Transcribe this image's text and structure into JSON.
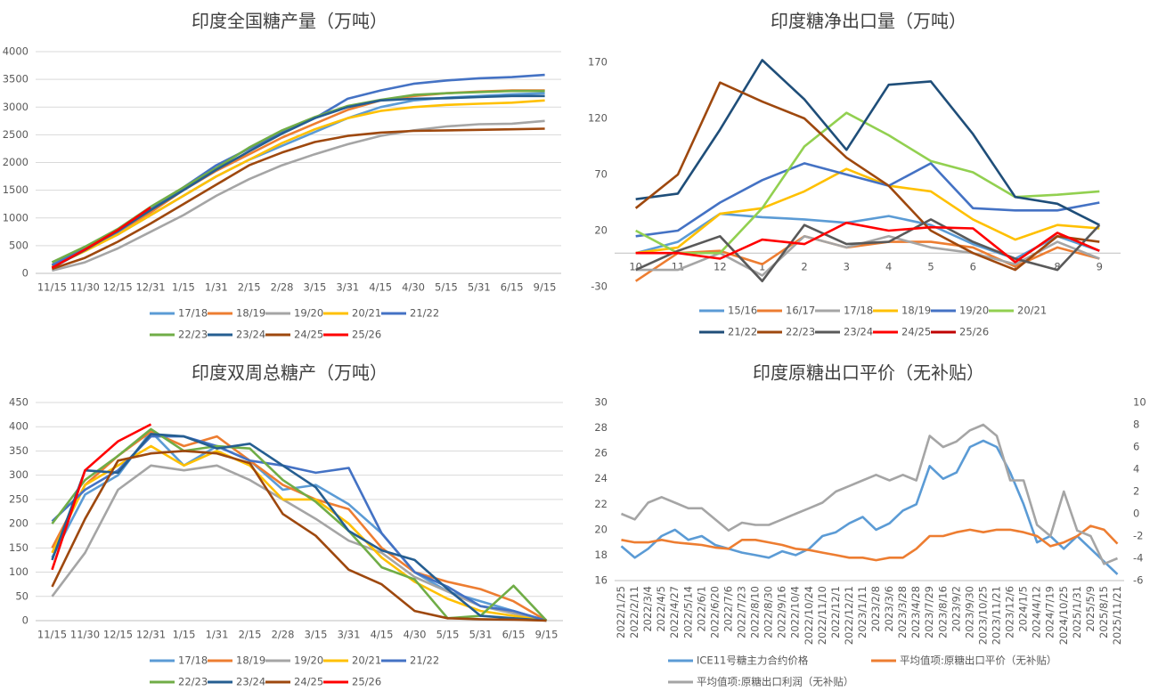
{
  "chart_data": [
    {
      "type": "line",
      "title": "印度全国糖产量（万吨）",
      "categories": [
        "11/15",
        "11/30",
        "12/15",
        "12/31",
        "1/15",
        "1/31",
        "2/15",
        "2/28",
        "3/15",
        "3/31",
        "4/15",
        "4/30",
        "5/15",
        "5/31",
        "6/15",
        "9/15"
      ],
      "ylim": [
        0,
        4000
      ],
      "yticks": [
        0,
        500,
        1000,
        1500,
        2000,
        2500,
        3000,
        3500,
        4000
      ],
      "grid": true,
      "series": [
        {
          "name": "17/18",
          "color": "#5b9bd5",
          "values": [
            150,
            420,
            700,
            1050,
            1400,
            1750,
            2050,
            2300,
            2550,
            2800,
            3000,
            3120,
            3170,
            3200,
            3230,
            3250
          ]
        },
        {
          "name": "18/19",
          "color": "#ed7d31",
          "values": [
            150,
            440,
            750,
            1100,
            1500,
            1850,
            2150,
            2450,
            2700,
            2950,
            3120,
            3200,
            3250,
            3280,
            3300,
            3300
          ]
        },
        {
          "name": "19/20",
          "color": "#a5a5a5",
          "values": [
            50,
            200,
            450,
            750,
            1050,
            1400,
            1700,
            1950,
            2150,
            2330,
            2480,
            2580,
            2650,
            2690,
            2700,
            2750
          ]
        },
        {
          "name": "20/21",
          "color": "#ffc000",
          "values": [
            120,
            400,
            700,
            1050,
            1400,
            1750,
            2050,
            2350,
            2600,
            2800,
            2930,
            3000,
            3040,
            3060,
            3080,
            3120
          ]
        },
        {
          "name": "21/22",
          "color": "#4472c4",
          "values": [
            150,
            450,
            750,
            1150,
            1550,
            1950,
            2250,
            2550,
            2800,
            3150,
            3300,
            3420,
            3480,
            3520,
            3540,
            3580
          ]
        },
        {
          "name": "22/23",
          "color": "#70ad47",
          "values": [
            200,
            480,
            800,
            1200,
            1550,
            1900,
            2270,
            2580,
            2820,
            3020,
            3130,
            3220,
            3250,
            3270,
            3290,
            3290
          ]
        },
        {
          "name": "23/24",
          "color": "#255e91",
          "values": [
            100,
            420,
            770,
            1140,
            1500,
            1870,
            2200,
            2520,
            2800,
            3000,
            3120,
            3150,
            3160,
            3180,
            3200,
            3200
          ]
        },
        {
          "name": "24/25",
          "color": "#9e480e",
          "values": [
            80,
            280,
            570,
            900,
            1250,
            1600,
            1950,
            2180,
            2370,
            2480,
            2540,
            2570,
            2580,
            2590,
            2600,
            2610
          ]
        },
        {
          "name": "25/26",
          "color": "#ff0000",
          "values": [
            100,
            430,
            780,
            1190,
            null,
            null,
            null,
            null,
            null,
            null,
            null,
            null,
            null,
            null,
            null,
            null
          ]
        }
      ]
    },
    {
      "type": "line",
      "title": "印度糖净出口量（万吨）",
      "categories": [
        "10",
        "11",
        "12",
        "1",
        "2",
        "3",
        "4",
        "5",
        "6",
        "7",
        "8",
        "9"
      ],
      "ylim": [
        -30,
        170
      ],
      "yticks": [
        -30,
        20,
        70,
        120,
        170
      ],
      "grid": false,
      "series": [
        {
          "name": "15/16",
          "color": "#5b9bd5",
          "values": [
            0,
            10,
            35,
            32,
            30,
            27,
            33,
            25,
            8,
            -5,
            15,
            2
          ]
        },
        {
          "name": "16/17",
          "color": "#ed7d31",
          "values": [
            -25,
            0,
            2,
            -10,
            15,
            5,
            10,
            10,
            5,
            -12,
            5,
            -5
          ]
        },
        {
          "name": "17/18",
          "color": "#a5a5a5",
          "values": [
            -15,
            -15,
            0,
            -20,
            15,
            5,
            15,
            5,
            0,
            -10,
            10,
            -5
          ]
        },
        {
          "name": "18/19",
          "color": "#ffc000",
          "values": [
            0,
            5,
            35,
            40,
            55,
            75,
            60,
            55,
            30,
            12,
            25,
            22
          ]
        },
        {
          "name": "19/20",
          "color": "#4472c4",
          "values": [
            15,
            20,
            45,
            65,
            80,
            70,
            60,
            80,
            40,
            38,
            38,
            45
          ]
        },
        {
          "name": "20/21",
          "color": "#92d050",
          "values": [
            20,
            0,
            0,
            40,
            95,
            125,
            105,
            82,
            72,
            50,
            52,
            55
          ]
        },
        {
          "name": "21/22",
          "color": "#1f4e79",
          "values": [
            48,
            53,
            110,
            172,
            137,
            92,
            150,
            153,
            106,
            50,
            44,
            25
          ]
        },
        {
          "name": "22/23",
          "color": "#9e480e",
          "values": [
            40,
            70,
            152,
            135,
            120,
            85,
            60,
            20,
            0,
            -15,
            15,
            10
          ]
        },
        {
          "name": "23/24",
          "color": "#595959",
          "values": [
            -15,
            2,
            15,
            -25,
            25,
            8,
            10,
            30,
            10,
            -5,
            -15,
            25
          ]
        },
        {
          "name": "24/25",
          "color": "#ff0000",
          "values": [
            0,
            0,
            -5,
            12,
            8,
            27,
            20,
            23,
            22,
            -8,
            18,
            2
          ]
        },
        {
          "name": "25/26",
          "color": "#c00000",
          "values": [
            null,
            null,
            null,
            null,
            null,
            null,
            null,
            null,
            null,
            null,
            null,
            null
          ]
        }
      ]
    },
    {
      "type": "line",
      "title": "印度双周总糖产（万吨）",
      "categories": [
        "11/15",
        "11/30",
        "12/15",
        "12/31",
        "1/15",
        "1/31",
        "2/15",
        "2/28",
        "3/15",
        "3/31",
        "4/15",
        "4/30",
        "5/15",
        "5/31",
        "6/15",
        "9/15"
      ],
      "ylim": [
        0,
        450
      ],
      "yticks": [
        0,
        50,
        100,
        150,
        200,
        250,
        300,
        350,
        400,
        450
      ],
      "grid": true,
      "series": [
        {
          "name": "17/18",
          "color": "#5b9bd5",
          "values": [
            130,
            260,
            300,
            390,
            320,
            360,
            330,
            270,
            280,
            240,
            180,
            100,
            60,
            40,
            20,
            0
          ]
        },
        {
          "name": "18/19",
          "color": "#ed7d31",
          "values": [
            150,
            280,
            340,
            390,
            360,
            380,
            330,
            280,
            250,
            230,
            150,
            100,
            80,
            65,
            40,
            0
          ]
        },
        {
          "name": "19/20",
          "color": "#a5a5a5",
          "values": [
            50,
            140,
            270,
            320,
            310,
            320,
            290,
            250,
            210,
            165,
            140,
            90,
            60,
            30,
            15,
            0
          ]
        },
        {
          "name": "20/21",
          "color": "#ffc000",
          "values": [
            140,
            280,
            320,
            360,
            320,
            350,
            320,
            250,
            250,
            200,
            130,
            80,
            45,
            20,
            10,
            0
          ]
        },
        {
          "name": "21/22",
          "color": "#4472c4",
          "values": [
            205,
            270,
            310,
            380,
            380,
            360,
            330,
            320,
            305,
            315,
            180,
            100,
            70,
            30,
            20,
            0
          ]
        },
        {
          "name": "22/23",
          "color": "#70ad47",
          "values": [
            200,
            290,
            340,
            395,
            350,
            360,
            355,
            290,
            245,
            185,
            110,
            85,
            5,
            10,
            72,
            0
          ]
        },
        {
          "name": "23/24",
          "color": "#255e91",
          "values": [
            125,
            310,
            305,
            385,
            380,
            355,
            365,
            320,
            275,
            185,
            145,
            125,
            65,
            10,
            5,
            0
          ]
        },
        {
          "name": "24/25",
          "color": "#9e480e",
          "values": [
            70,
            210,
            330,
            345,
            350,
            345,
            325,
            220,
            175,
            105,
            75,
            20,
            5,
            3,
            2,
            0
          ]
        },
        {
          "name": "25/26",
          "color": "#ff0000",
          "values": [
            105,
            310,
            370,
            405,
            null,
            null,
            null,
            null,
            null,
            null,
            null,
            null,
            null,
            null,
            null,
            null
          ]
        }
      ]
    },
    {
      "type": "line",
      "title": "印度原糖出口平价（无补贴）",
      "categories": [
        "2022/1/25",
        "2022/2/11",
        "2022/3/4",
        "2022/4/5",
        "2022/4/27",
        "2022/5/14",
        "2022/6/1",
        "2022/6/20",
        "2022/7/6",
        "2022/7/23",
        "2022/8/10",
        "2022/8/30",
        "2022/9/16",
        "2022/10/4",
        "2022/10/24",
        "2022/11/10",
        "2022/12/1",
        "2022/12/21",
        "2023/1/11",
        "2023/2/8",
        "2023/3/6",
        "2023/3/28",
        "2023/4/28",
        "2023/7/29",
        "2023/8/16",
        "2023/9/2",
        "2023/9/30",
        "2023/10/25",
        "2023/11/21",
        "2023/12/6",
        "2024/1/5",
        "2024/4/12",
        "2024/7/19",
        "2024/10/25",
        "2025/1/31",
        "2025/5/9",
        "2025/8/15",
        "2025/11/21"
      ],
      "ylim": [
        16,
        30
      ],
      "yticks": [
        16,
        18,
        20,
        22,
        24,
        26,
        28,
        30
      ],
      "y2lim": [
        -6,
        10
      ],
      "y2ticks": [
        -6,
        -4,
        -2,
        0,
        2,
        4,
        6,
        8,
        10
      ],
      "grid": false,
      "series": [
        {
          "name": "ICE11号糖主力合约价格",
          "color": "#5b9bd5",
          "values": [
            18.7,
            17.8,
            18.5,
            19.5,
            20,
            19.2,
            19.5,
            18.8,
            18.5,
            18.2,
            18,
            17.8,
            18.3,
            18,
            18.5,
            19.5,
            19.8,
            20.5,
            21,
            20,
            20.5,
            21.5,
            22,
            25,
            24,
            24.5,
            26.5,
            27,
            26.5,
            24.5,
            22,
            19,
            19.5,
            18.5,
            19.5,
            18.5,
            17.5,
            16.5
          ]
        },
        {
          "name": "平均值项:原糖出口平价（无补贴）",
          "color": "#ed7d31",
          "values": [
            19.2,
            19,
            19,
            19.2,
            19,
            18.9,
            18.8,
            18.6,
            18.5,
            19.2,
            19.2,
            19,
            18.8,
            18.5,
            18.4,
            18.2,
            18,
            17.8,
            17.8,
            17.6,
            17.8,
            17.8,
            18.5,
            19.5,
            19.5,
            19.8,
            20,
            19.8,
            20,
            20,
            19.8,
            19.5,
            18.7,
            19,
            19.5,
            20.3,
            20,
            18.9
          ]
        },
        {
          "name": "平均值项:原糖出口利润（无补贴）",
          "color": "#a5a5a5",
          "axis": "y2",
          "values": [
            0,
            -0.5,
            1,
            1.5,
            1,
            0.5,
            0.5,
            -0.5,
            -1.5,
            -0.8,
            -1,
            -1,
            -0.5,
            0,
            0.5,
            1,
            2,
            2.5,
            3,
            3.5,
            3,
            3.5,
            3,
            7,
            6,
            6.5,
            7.5,
            8,
            7,
            3,
            3,
            -1,
            -2,
            2,
            -1.5,
            -2,
            -4.5,
            -4
          ]
        }
      ]
    }
  ]
}
